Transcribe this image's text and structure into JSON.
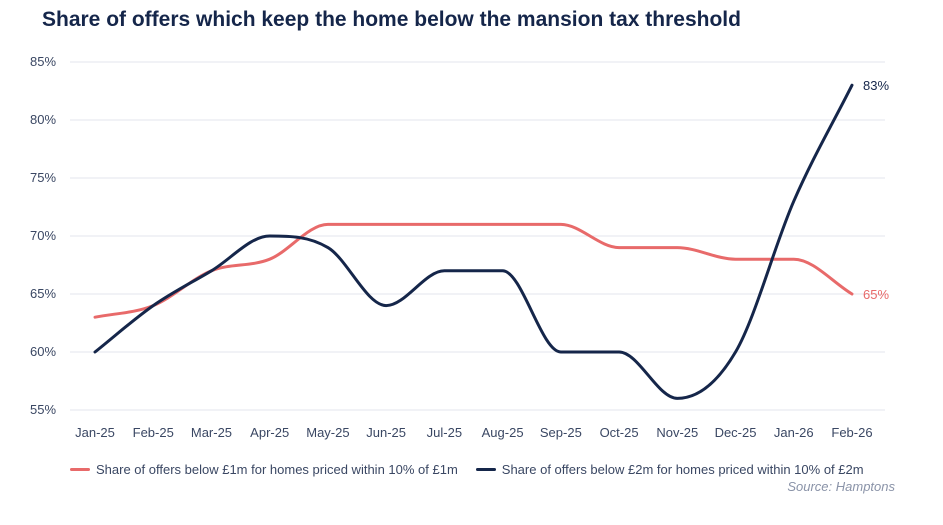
{
  "chart_data": {
    "type": "line",
    "title": "Share of offers which keep the home below the mansion tax threshold",
    "categories": [
      "Jan-25",
      "Feb-25",
      "Mar-25",
      "Apr-25",
      "May-25",
      "Jun-25",
      "Jul-25",
      "Aug-25",
      "Sep-25",
      "Oct-25",
      "Nov-25",
      "Dec-25",
      "Jan-26",
      "Feb-26"
    ],
    "y_ticks": [
      "55%",
      "60%",
      "65%",
      "70%",
      "75%",
      "80%",
      "85%"
    ],
    "ylim": [
      55,
      85
    ],
    "grid": true,
    "legend_position": "bottom",
    "series": [
      {
        "name": "Share of offers below £1m for homes priced within 10% of £1m",
        "color": "#e86a6a",
        "values": [
          63,
          64,
          67,
          68,
          71,
          71,
          71,
          71,
          71,
          69,
          69,
          68,
          68,
          65
        ],
        "end_label": "65%"
      },
      {
        "name": "Share of offers below £2m for homes priced within 10% of £2m",
        "color": "#15264a",
        "values": [
          60,
          64,
          67,
          70,
          69,
          64,
          67,
          67,
          60,
          60,
          56,
          60,
          73,
          83
        ],
        "end_label": "83%"
      }
    ],
    "source": "Source: Hamptons"
  }
}
